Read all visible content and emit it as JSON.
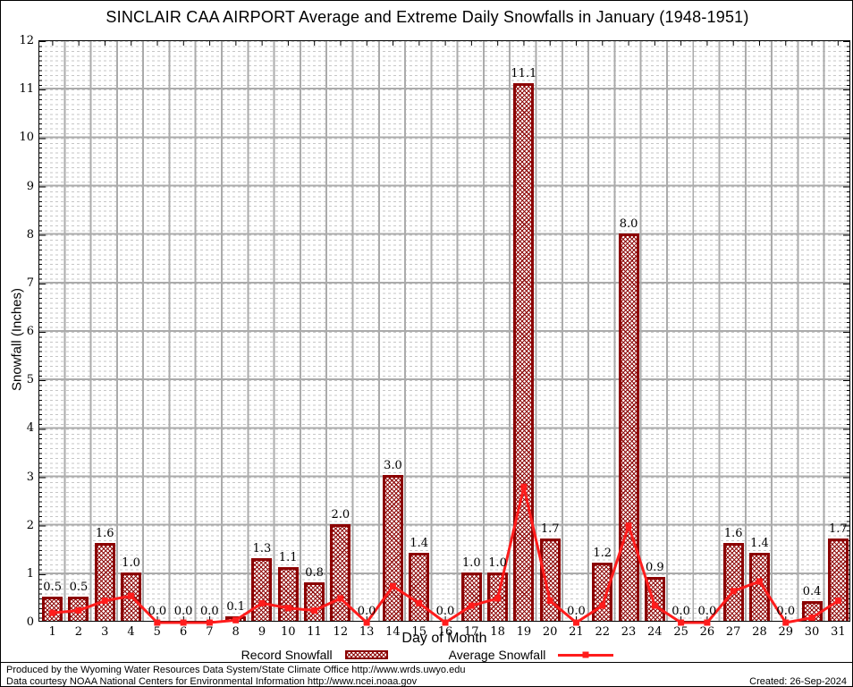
{
  "title": "SINCLAIR CAA AIRPORT Average and Extreme Daily Snowfalls in January (1948-1951)",
  "legend": {
    "record_label": "Record Snowfall",
    "average_label": "Average Snowfall"
  },
  "footer": {
    "line1": "Produced by the Wyoming Water Resources Data System/State Climate Office http://www.wrds.uwyo.edu",
    "line2": "Data courtesy NOAA National Centers for Environmental Information http://www.ncei.noaa.gov",
    "created": "Created: 26-Sep-2024"
  },
  "colors": {
    "bar_border": "#8b0000",
    "bar_hatch": "#8b0000",
    "average_line": "#ff1c1c",
    "grid_major": "#ababab",
    "grid_minor": "#c6c6c6",
    "text": "#000000"
  },
  "chart_data": {
    "type": "bar",
    "title": "SINCLAIR CAA AIRPORT Average and Extreme Daily Snowfalls in January (1948-1951)",
    "xlabel": "Day of Month",
    "ylabel": "Snowfall (Inches)",
    "ylim": [
      0,
      12
    ],
    "y_major_step": 1,
    "y_minor_step": 0.1,
    "grid": true,
    "legend_position": "bottom",
    "bar_labels_shown": true,
    "categories": [
      1,
      2,
      3,
      4,
      5,
      6,
      7,
      8,
      9,
      10,
      11,
      12,
      13,
      14,
      15,
      16,
      17,
      18,
      19,
      20,
      21,
      22,
      23,
      24,
      25,
      26,
      27,
      28,
      29,
      30,
      31
    ],
    "series": [
      {
        "name": "Record Snowfall",
        "type": "bar",
        "values": [
          0.5,
          0.5,
          1.6,
          1.0,
          0.0,
          0.0,
          0.0,
          0.1,
          1.3,
          1.1,
          0.8,
          2.0,
          0.0,
          3.0,
          1.4,
          0.0,
          1.0,
          1.0,
          11.1,
          1.7,
          0.0,
          1.2,
          8.0,
          0.9,
          0.0,
          0.0,
          1.6,
          1.4,
          0.0,
          0.4,
          1.7
        ]
      },
      {
        "name": "Average Snowfall",
        "type": "line",
        "values": [
          0.2,
          0.25,
          0.45,
          0.55,
          0.0,
          0.0,
          0.0,
          0.05,
          0.4,
          0.3,
          0.25,
          0.5,
          0.0,
          0.75,
          0.4,
          0.0,
          0.35,
          0.5,
          2.8,
          0.45,
          0.0,
          0.35,
          2.0,
          0.35,
          0.0,
          0.0,
          0.65,
          0.85,
          0.0,
          0.1,
          0.45
        ]
      }
    ]
  }
}
